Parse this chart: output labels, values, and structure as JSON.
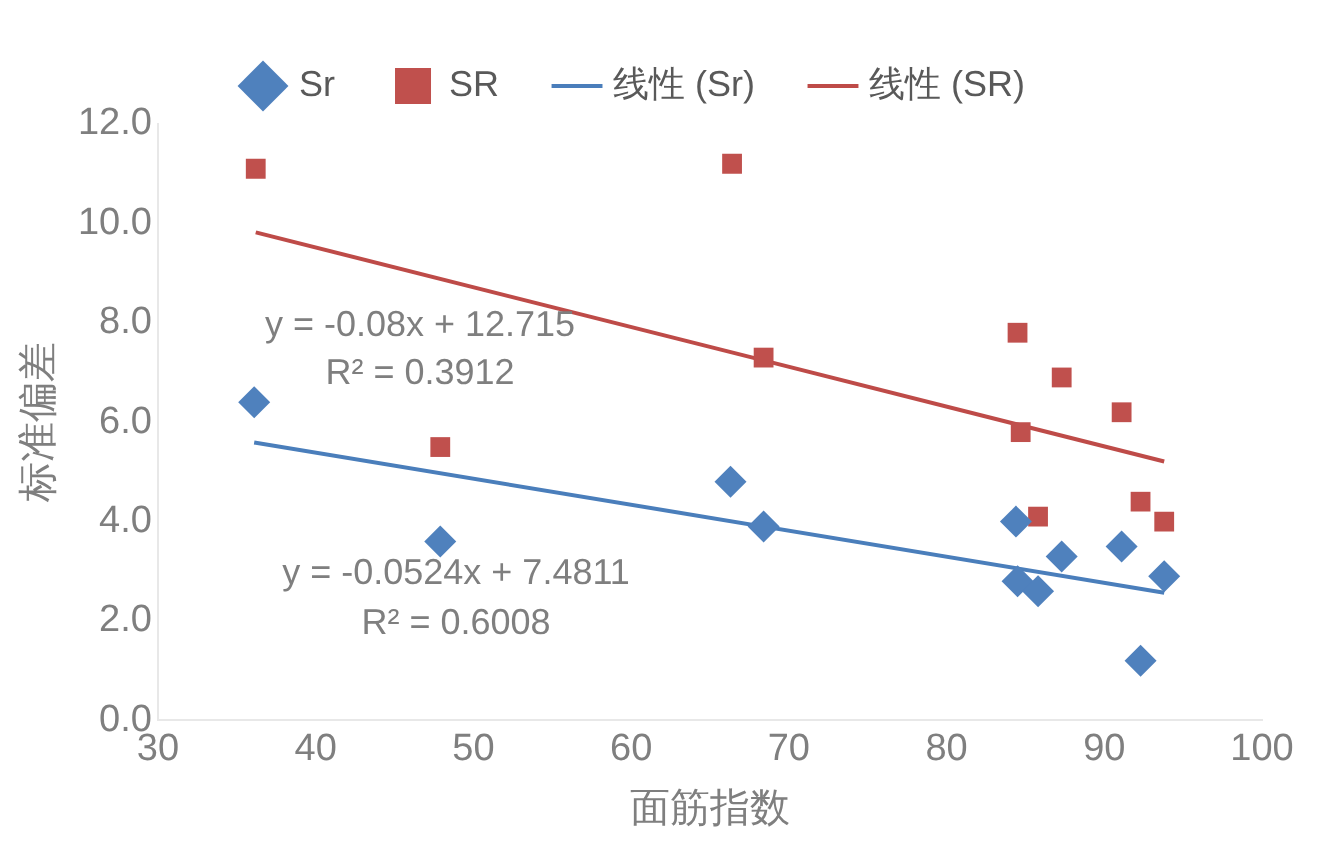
{
  "chart_data": {
    "type": "scatter",
    "xlabel": "面筋指数",
    "ylabel": "标准偏差",
    "xlim": [
      30,
      100
    ],
    "xticks": [
      30,
      40,
      50,
      60,
      70,
      80,
      90,
      100
    ],
    "ylim": [
      0,
      12
    ],
    "yticks": [
      {
        "value": 0,
        "label": "0.0"
      },
      {
        "value": 2,
        "label": "2.0"
      },
      {
        "value": 4,
        "label": "4.0"
      },
      {
        "value": 6,
        "label": "6.0"
      },
      {
        "value": 8,
        "label": "8.0"
      },
      {
        "value": 10,
        "label": "10.0"
      },
      {
        "value": 12,
        "label": "12.0"
      }
    ],
    "grid": false,
    "legend": "top",
    "series": [
      {
        "name": "Sr",
        "type": "scatter",
        "marker": "diamond",
        "color": "#4f81bd",
        "x": [
          36.1,
          47.9,
          66.3,
          68.4,
          84.4,
          84.5,
          85.8,
          87.3,
          91.1,
          92.3,
          93.8
        ],
        "values": [
          6.4,
          3.6,
          4.8,
          3.9,
          4.0,
          2.8,
          2.6,
          3.3,
          3.5,
          1.2,
          2.9
        ]
      },
      {
        "name": "SR",
        "type": "scatter",
        "marker": "square",
        "color": "#c0504d",
        "x": [
          36.2,
          47.9,
          66.4,
          68.4,
          84.5,
          84.7,
          85.8,
          87.3,
          91.1,
          92.3,
          93.8
        ],
        "values": [
          11.1,
          5.5,
          11.2,
          7.3,
          7.8,
          5.8,
          4.1,
          6.9,
          6.2,
          4.4,
          4.0
        ]
      },
      {
        "name": "线性 (Sr)",
        "type": "line",
        "marker": "none",
        "color": "#4a7ebb",
        "x": [
          36.1,
          93.8
        ],
        "values": [
          5.59,
          2.57
        ]
      },
      {
        "name": "线性 (SR)",
        "type": "line",
        "marker": "none",
        "color": "#be4b48",
        "x": [
          36.2,
          93.8
        ],
        "values": [
          9.82,
          5.21
        ]
      }
    ],
    "annotations": [
      "y = -0.08x + 12.715",
      "R² = 0.3912",
      "y = -0.0524x + 7.4811",
      "R² = 0.6008"
    ]
  }
}
